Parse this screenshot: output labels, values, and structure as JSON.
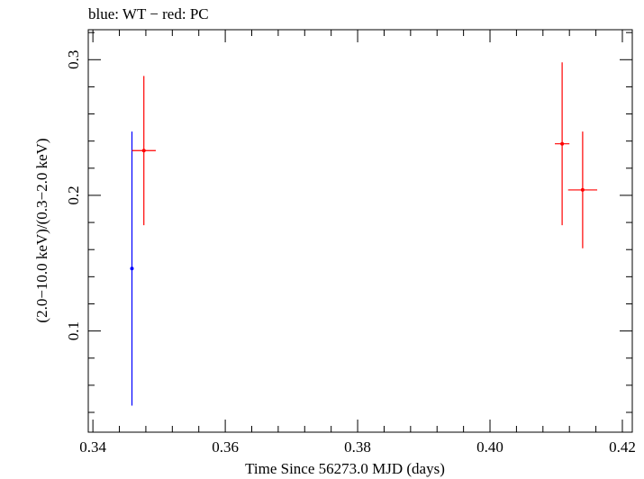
{
  "chart_data": {
    "type": "scatter",
    "title": "blue: WT − red: PC",
    "xlabel": "Time Since 56273.0 MJD (days)",
    "ylabel": "(2.0−10.0 keV)/(0.3−2.0 keV)",
    "xlim": [
      0.3393,
      0.4215
    ],
    "ylim": [
      0.0254,
      0.3221
    ],
    "x_ticks": [
      {
        "value": 0.34,
        "label": "0.34"
      },
      {
        "value": 0.36,
        "label": "0.36"
      },
      {
        "value": 0.38,
        "label": "0.38"
      },
      {
        "value": 0.4,
        "label": "0.40"
      },
      {
        "value": 0.42,
        "label": "0.42"
      }
    ],
    "y_ticks": [
      {
        "value": 0.1,
        "label": "0.1"
      },
      {
        "value": 0.2,
        "label": "0.2"
      },
      {
        "value": 0.3,
        "label": "0.3"
      }
    ],
    "series": [
      {
        "name": "WT",
        "color": "#0000ff",
        "points": [
          {
            "x": 0.3459,
            "y": 0.146,
            "xerr": 0.0,
            "ylo": 0.045,
            "yhi": 0.247
          }
        ]
      },
      {
        "name": "PC",
        "color": "#ff0000",
        "points": [
          {
            "x": 0.3477,
            "y": 0.233,
            "xerr": 0.0018,
            "ylo": 0.178,
            "yhi": 0.288
          },
          {
            "x": 0.4109,
            "y": 0.238,
            "xerr": 0.0011,
            "ylo": 0.178,
            "yhi": 0.298
          },
          {
            "x": 0.414,
            "y": 0.204,
            "xerr": 0.0022,
            "ylo": 0.161,
            "yhi": 0.247
          }
        ]
      }
    ]
  }
}
